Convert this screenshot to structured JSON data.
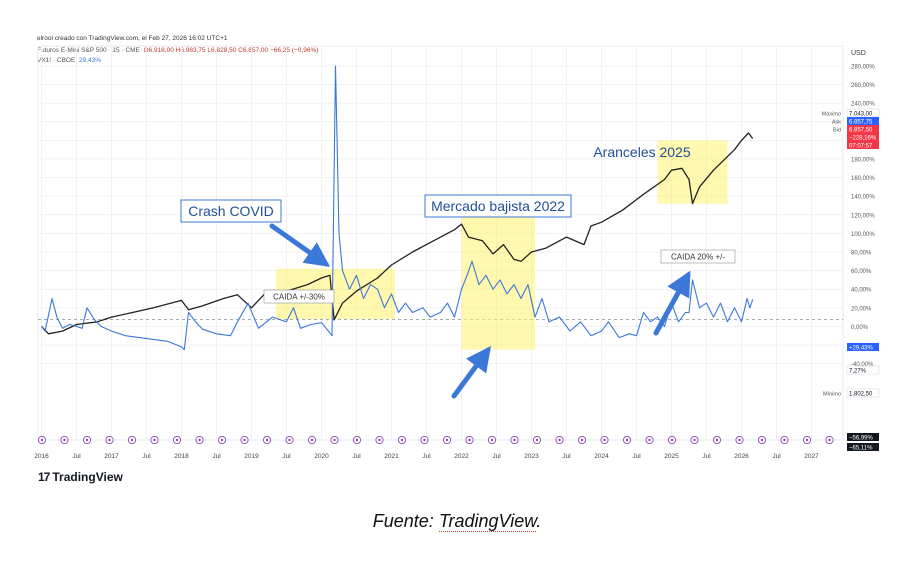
{
  "header": {
    "credit": "elrool creado con TradingView.com, el Feb 27, 2026 16:02 UTC+1",
    "symbol": "Futuros E-Mini S&P 500 · 15 · CME",
    "ohlc": "O6.918,00  H6.983,75  L6.828,50  C6.857,00  −66,25 (−0,96%)",
    "vix_symbol": "VX1! · CBOE",
    "vix_value": "29,43%"
  },
  "chart_data": {
    "type": "line",
    "x_ticks": [
      "2016",
      "Jul",
      "2017",
      "Jul",
      "2018",
      "Jul",
      "2019",
      "Jul",
      "2020",
      "Jul",
      "2021",
      "Jul",
      "2022",
      "Jul",
      "2023",
      "Jul",
      "2024",
      "Jul",
      "2025",
      "Jul",
      "2026",
      "Jul",
      "2027"
    ],
    "y_axis_unit": "USD",
    "y_ticks": [
      "280,00%",
      "260,00%",
      "240,00%",
      "220,00%",
      "200,00%",
      "180,00%",
      "160,00%",
      "140,00%",
      "120,00%",
      "100,00%",
      "80,00%",
      "60,00%",
      "40,00%",
      "20,00%",
      "0,00%",
      "-20,00%",
      "-40,00%"
    ],
    "ylim": [
      -40,
      290
    ],
    "price_labels": [
      {
        "name": "Máximo",
        "value": "7.043,00",
        "color": "#ffffff",
        "text": "#131722"
      },
      {
        "name": "Ask",
        "value": "6.857,75",
        "color": "#2962ff",
        "text": "#ffffff"
      },
      {
        "name": "Bid",
        "value": "6.857,50",
        "color": "#f23645",
        "text": "#ffffff"
      },
      {
        "name": "",
        "value": "−228,16%",
        "color": "#f23645",
        "text": "#ffffff"
      },
      {
        "name": "",
        "value": "07:07:57",
        "color": "#f23645",
        "text": "#ffffff"
      },
      {
        "name": "",
        "value": "+29,43%",
        "color": "#2962ff",
        "text": "#ffffff"
      },
      {
        "name": "",
        "value": "7,27%",
        "color": "#ffffff",
        "text": "#131722"
      },
      {
        "name": "Mínimo",
        "value": "1.802,50",
        "color": "#ffffff",
        "text": "#131722"
      },
      {
        "name": "",
        "value": "−56,99%",
        "color": "#131722",
        "text": "#ffffff"
      },
      {
        "name": "",
        "value": "−65,11%",
        "color": "#131722",
        "text": "#ffffff"
      }
    ],
    "series": [
      {
        "key": "es",
        "color": "#222222",
        "x": [
          2016.0,
          2016.1,
          2016.3,
          2016.5,
          2016.8,
          2017.0,
          2017.3,
          2017.6,
          2018.0,
          2018.1,
          2018.3,
          2018.6,
          2018.8,
          2019.0,
          2019.2,
          2019.5,
          2019.8,
          2020.0,
          2020.12,
          2020.18,
          2020.3,
          2020.5,
          2020.8,
          2021.0,
          2021.3,
          2021.6,
          2021.9,
          2022.0,
          2022.1,
          2022.3,
          2022.45,
          2022.6,
          2022.75,
          2022.85,
          2023.0,
          2023.2,
          2023.5,
          2023.75,
          2023.85,
          2024.0,
          2024.3,
          2024.6,
          2024.9,
          2025.0,
          2025.15,
          2025.25,
          2025.3,
          2025.4,
          2025.6,
          2025.9,
          2026.0,
          2026.1,
          2026.16
        ],
        "y": [
          0,
          -8,
          -5,
          2,
          5,
          10,
          15,
          20,
          28,
          18,
          22,
          30,
          34,
          20,
          36,
          38,
          45,
          52,
          55,
          7,
          25,
          38,
          52,
          66,
          80,
          92,
          104,
          110,
          96,
          92,
          78,
          88,
          72,
          70,
          80,
          84,
          96,
          88,
          108,
          112,
          125,
          142,
          158,
          168,
          170,
          158,
          132,
          150,
          168,
          190,
          200,
          208,
          202
        ]
      },
      {
        "key": "vix",
        "color": "#3b78d8",
        "x": [
          2016.0,
          2016.05,
          2016.1,
          2016.15,
          2016.22,
          2016.3,
          2016.4,
          2016.5,
          2016.58,
          2016.65,
          2016.75,
          2016.85,
          2017.0,
          2017.2,
          2017.4,
          2017.6,
          2017.8,
          2018.0,
          2018.04,
          2018.1,
          2018.2,
          2018.3,
          2018.5,
          2018.7,
          2018.8,
          2018.95,
          2019.1,
          2019.3,
          2019.5,
          2019.6,
          2019.7,
          2019.85,
          2020.0,
          2020.1,
          2020.15,
          2020.2,
          2020.25,
          2020.3,
          2020.4,
          2020.5,
          2020.6,
          2020.7,
          2020.8,
          2020.9,
          2021.0,
          2021.1,
          2021.2,
          2021.3,
          2021.45,
          2021.55,
          2021.7,
          2021.8,
          2021.9,
          2022.0,
          2022.08,
          2022.15,
          2022.25,
          2022.35,
          2022.45,
          2022.55,
          2022.65,
          2022.75,
          2022.85,
          2022.95,
          2023.05,
          2023.15,
          2023.25,
          2023.4,
          2023.55,
          2023.7,
          2023.85,
          2024.0,
          2024.1,
          2024.25,
          2024.4,
          2024.5,
          2024.6,
          2024.7,
          2024.8,
          2024.9,
          2025.0,
          2025.1,
          2025.2,
          2025.25,
          2025.3,
          2025.4,
          2025.5,
          2025.6,
          2025.7,
          2025.8,
          2025.9,
          2026.0,
          2026.08,
          2026.12,
          2026.16
        ],
        "y": [
          0,
          -5,
          12,
          30,
          10,
          -2,
          2,
          0,
          -2,
          20,
          8,
          0,
          -5,
          -10,
          -12,
          -14,
          -16,
          -22,
          -25,
          15,
          5,
          -3,
          -8,
          -10,
          5,
          25,
          -2,
          10,
          5,
          20,
          -2,
          2,
          4,
          -5,
          -10,
          280,
          100,
          60,
          40,
          55,
          30,
          45,
          40,
          20,
          35,
          15,
          25,
          15,
          20,
          10,
          15,
          25,
          10,
          40,
          55,
          70,
          45,
          55,
          40,
          50,
          35,
          45,
          30,
          45,
          10,
          30,
          5,
          10,
          -5,
          5,
          -10,
          -5,
          5,
          -12,
          -8,
          -10,
          15,
          5,
          10,
          0,
          25,
          5,
          15,
          15,
          50,
          20,
          25,
          10,
          25,
          5,
          20,
          5,
          30,
          20,
          29
        ]
      }
    ],
    "zones": [
      {
        "x0": 2019.35,
        "x1": 2021.05,
        "y0": 8,
        "y1": 62
      },
      {
        "x0": 2022.0,
        "x1": 2023.05,
        "y0": -25,
        "y1": 140
      },
      {
        "x0": 2024.8,
        "x1": 2025.8,
        "y0": 132,
        "y1": 200
      }
    ],
    "callouts": [
      {
        "text": "Crash COVID",
        "boxed": true
      },
      {
        "text": "Mercado bajista 2022",
        "boxed": true
      },
      {
        "text": "Aranceles 2025",
        "boxed": false
      }
    ],
    "notes": [
      "CAIDA +/-30%",
      "CAIDA 20% +/-"
    ]
  },
  "footer": {
    "logo_text": "TradingView",
    "caption_prefix": "Fuente: ",
    "caption_source": "TradingView",
    "caption_suffix": "."
  }
}
